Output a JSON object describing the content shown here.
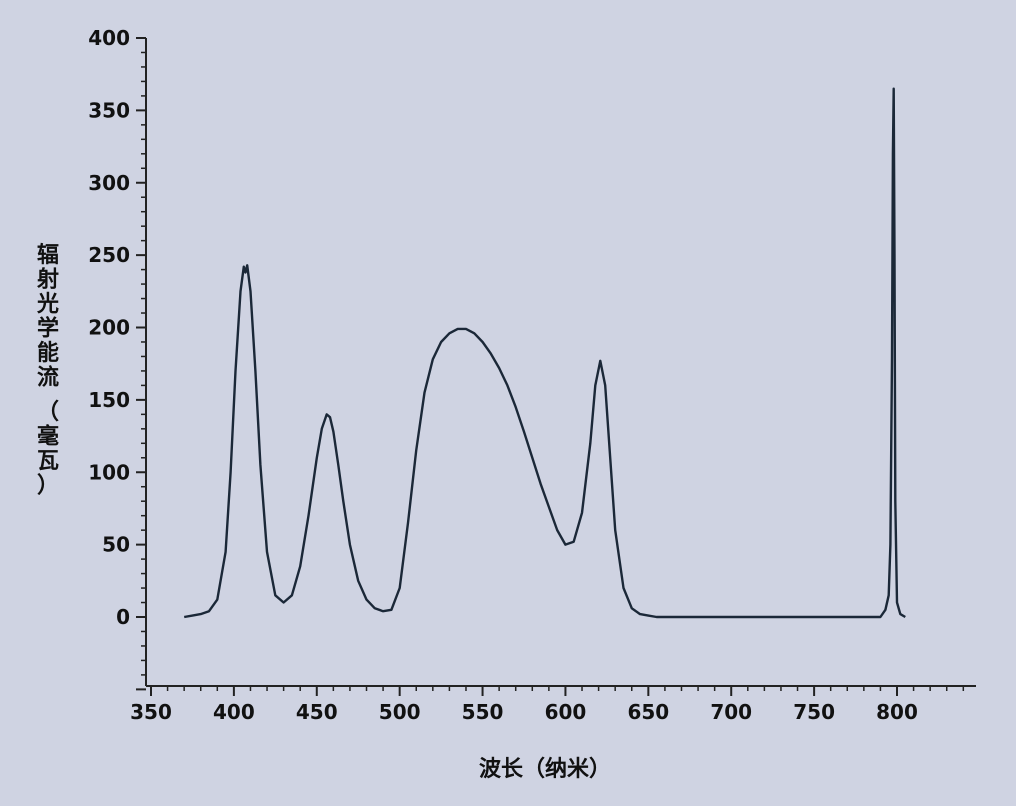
{
  "chart_data": {
    "type": "line",
    "title": "",
    "xlabel": "波长（纳米）",
    "ylabel": "辐射光学能流（毫瓦）",
    "xlim": [
      350,
      850
    ],
    "ylim": [
      -50,
      400
    ],
    "x_ticks": [
      "350",
      "400",
      "450",
      "500",
      "550",
      "600",
      "650",
      "700",
      "750",
      "800"
    ],
    "y_ticks": [
      "0",
      "50",
      "100",
      "150",
      "200",
      "250",
      "300",
      "350",
      "400"
    ],
    "grid": false,
    "legend": "none",
    "line_color": "#1b2838",
    "series": [
      {
        "x": [
          370,
          375,
          380,
          385,
          390,
          395,
          398,
          401,
          404,
          406,
          407,
          408,
          410,
          413,
          416,
          420,
          425,
          430,
          435,
          440,
          445,
          450,
          453,
          456,
          458,
          460,
          463,
          466,
          470,
          475,
          480,
          485,
          490,
          495,
          500,
          505,
          510,
          515,
          520,
          525,
          530,
          535,
          540,
          545,
          550,
          555,
          560,
          565,
          570,
          575,
          580,
          585,
          590,
          595,
          600,
          605,
          610,
          615,
          618,
          621,
          624,
          627,
          630,
          635,
          640,
          645,
          650,
          655,
          660,
          700,
          750,
          790,
          793,
          795,
          796,
          797,
          797.5,
          798,
          798.5,
          799,
          800,
          802,
          805
        ],
        "y": [
          0,
          1,
          2,
          4,
          12,
          45,
          100,
          170,
          225,
          242,
          238,
          243,
          225,
          170,
          105,
          45,
          15,
          10,
          15,
          35,
          70,
          110,
          130,
          140,
          138,
          128,
          105,
          80,
          50,
          25,
          12,
          6,
          4,
          5,
          20,
          65,
          115,
          155,
          178,
          190,
          196,
          199,
          199,
          196,
          190,
          182,
          172,
          160,
          145,
          128,
          110,
          92,
          76,
          60,
          50,
          52,
          72,
          120,
          160,
          177,
          160,
          110,
          60,
          20,
          6,
          2,
          1,
          0,
          0,
          0,
          0,
          0,
          5,
          15,
          50,
          180,
          320,
          365,
          250,
          80,
          10,
          2,
          0
        ]
      }
    ]
  }
}
